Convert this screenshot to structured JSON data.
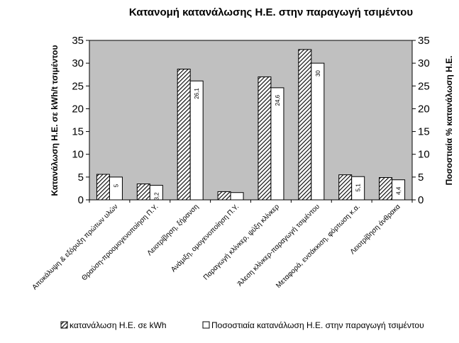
{
  "chart_data": {
    "type": "bar",
    "title": "Κατανομή κατανάλωσης Η.Ε. στην παραγωγή τσιμέντου",
    "ylabel_left": "Κατανάλωση Η.Ε. σε kWh/t τσιμέντου",
    "ylabel_right": "Ποσοστιαία % κατανάλωση Η.Ε.",
    "ylim": [
      0,
      35
    ],
    "yticks": [
      0,
      5,
      10,
      15,
      20,
      25,
      30,
      35
    ],
    "grid": false,
    "legend_position": "bottom",
    "categories": [
      "Αποκάλυψη & εξόρυξη πρώτων υλών",
      "Θραύση-προομογενοποίηση Π.Υ.",
      "Λειοτρίβηση, ξήρανση",
      "Ανάμιξη, ομογενοποίηση Π.Υ.",
      "Παραγωγή κλίνκερ, ψύξη κλίνκερ",
      "Άλεση κλίνκερ-παραγωγή τσιμέντου",
      "Μεταφορά, ενσάκκιση, φόρτωση κ.α.",
      "Λειοτρίβηση άνθρακα"
    ],
    "series": [
      {
        "name": "κατανάλωση Η.Ε. σε kWh",
        "values": [
          5.6,
          3.5,
          28.7,
          1.8,
          27,
          33,
          5.5,
          4.9
        ],
        "color": "#ffffff",
        "pattern": "diagonal-hatch"
      },
      {
        "name": "Ποσοστιαία κατανάλωση Η.Ε. στην παραγωγή τσιμέντου",
        "values": [
          5,
          3.2,
          26.1,
          1.6,
          24.6,
          30,
          5.1,
          4.4
        ],
        "data_labels": [
          "5",
          "3,2",
          "26,1",
          "",
          "24,6",
          "30",
          "5,1",
          "4,4"
        ],
        "color": "#ffffff"
      }
    ],
    "colors": {
      "plot_bg": "#c0c0c0",
      "bar_stroke": "#000000"
    }
  }
}
